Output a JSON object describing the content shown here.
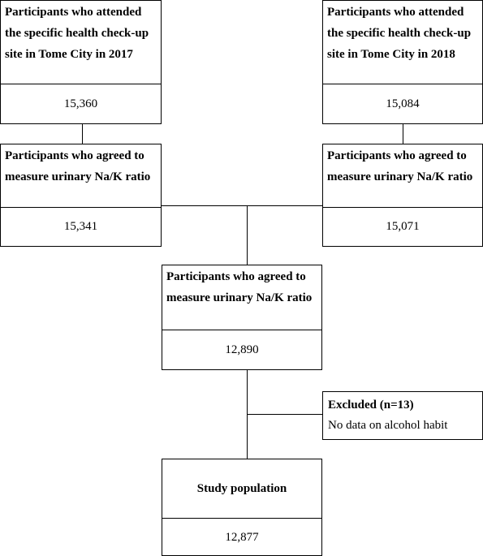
{
  "boxes": {
    "y2017": {
      "label": "Participants who attended the specific health check-up site in Tome City in 2017",
      "value": "15,360"
    },
    "y2018": {
      "label": "Participants who attended the specific health check-up site in Tome City in 2018",
      "value": "15,084"
    },
    "agreed2017": {
      "label": "Participants who agreed to measure urinary Na/K ratio",
      "value": "15,341"
    },
    "agreed2018": {
      "label": "Participants who agreed to measure urinary Na/K ratio",
      "value": "15,071"
    },
    "combined": {
      "label": "Participants who agreed to measure urinary Na/K ratio",
      "value": "12,890"
    },
    "excluded": {
      "title": "Excluded (n=13)",
      "reason": "No data on alcohol habit"
    },
    "study": {
      "label": "Study population",
      "value": "12,877"
    }
  }
}
